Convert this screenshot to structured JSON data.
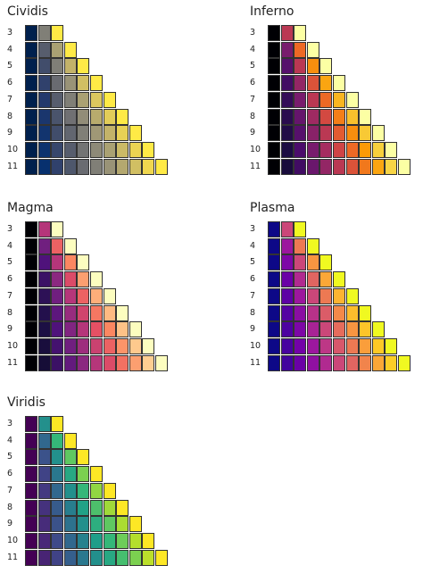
{
  "palettes": [
    {
      "name": "Cividis",
      "colors": [
        "#00204D",
        "#002E6F",
        "#24396C",
        "#414D6B",
        "#575D6D",
        "#6D6E72",
        "#807F77",
        "#958F78",
        "#AAA173",
        "#C3B369",
        "#DBC75F",
        "#F5DB4B",
        "#FFEA46"
      ]
    },
    {
      "name": "Inferno",
      "colors": [
        "#000004",
        "#1B0C42",
        "#4B0C6B",
        "#781C6D",
        "#A52C60",
        "#CF4446",
        "#ED6925",
        "#FB9A06",
        "#F7D03C",
        "#FCFFA4"
      ]
    },
    {
      "name": "Magma",
      "colors": [
        "#000004",
        "#1C1044",
        "#4F127B",
        "#812581",
        "#B5367A",
        "#E55064",
        "#FB8761",
        "#FEC287",
        "#FCFDBF"
      ]
    },
    {
      "name": "Plasma",
      "colors": [
        "#0D0887",
        "#47039F",
        "#7301A8",
        "#9C179E",
        "#BD3786",
        "#D8576B",
        "#ED7953",
        "#FA9E3B",
        "#FDC926",
        "#F0F921"
      ]
    },
    {
      "name": "Viridis",
      "colors": [
        "#440154",
        "#482878",
        "#3E4A89",
        "#31688E",
        "#26828E",
        "#1F9E89",
        "#35B779",
        "#6DCD59",
        "#B4DE2C",
        "#FDE725"
      ]
    }
  ],
  "row_labels": [
    "3",
    "4",
    "5",
    "6",
    "7",
    "8",
    "9",
    "10",
    "11"
  ]
}
